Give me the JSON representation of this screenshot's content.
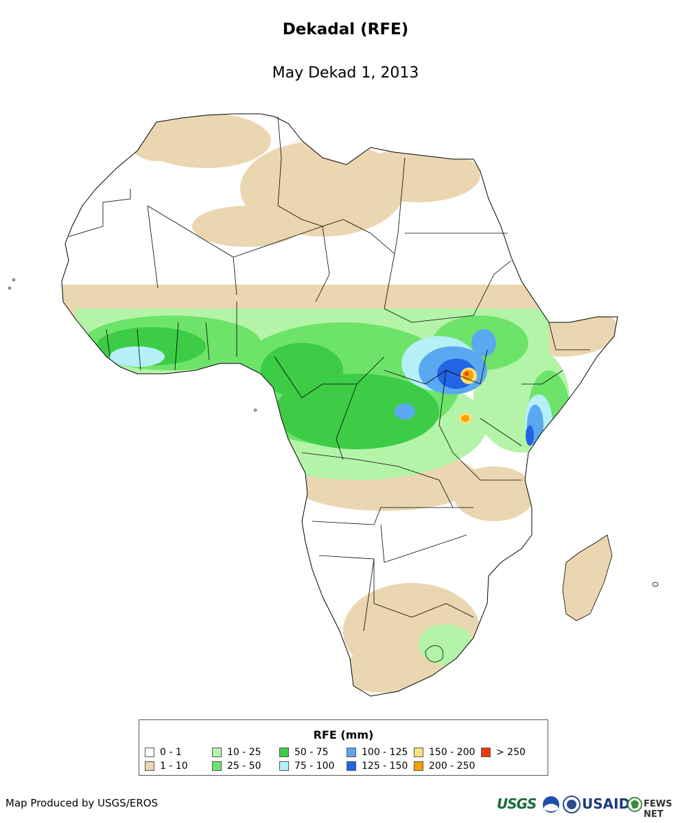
{
  "header": {
    "title": "Dekadal (RFE)",
    "subtitle": "May Dekad 1, 2013"
  },
  "legend": {
    "title": "RFE (mm)",
    "items": [
      {
        "label": "0 - 1",
        "color": "#ffffff"
      },
      {
        "label": "1 - 10",
        "color": "#ead6b0"
      },
      {
        "label": "10 - 25",
        "color": "#b4f4a8"
      },
      {
        "label": "25 - 50",
        "color": "#6ee36a"
      },
      {
        "label": "50 - 75",
        "color": "#3ccc46"
      },
      {
        "label": "75 - 100",
        "color": "#b4f0f6"
      },
      {
        "label": "100 - 125",
        "color": "#5aa8f0"
      },
      {
        "label": "125 - 150",
        "color": "#2264e4"
      },
      {
        "label": "150 - 200",
        "color": "#fae07a"
      },
      {
        "label": "200 - 250",
        "color": "#f7a000"
      },
      {
        "label": "> 250",
        "color": "#ef3a08"
      }
    ]
  },
  "footer": {
    "credit": "Map Produced by USGS/EROS",
    "logos": [
      {
        "name": "usgs-logo",
        "text": "USGS",
        "color": "#1a6b3c"
      },
      {
        "name": "noaa-logo",
        "text": "",
        "color": "#1f4fa8"
      },
      {
        "name": "state-seal-logo",
        "text": "",
        "color": "#2d4a8a"
      },
      {
        "name": "usaid-logo",
        "text": "USAID",
        "color": "#1a3a7a"
      },
      {
        "name": "fewsnet-logo",
        "text": "FEWS NET",
        "color": "#333333"
      }
    ]
  }
}
